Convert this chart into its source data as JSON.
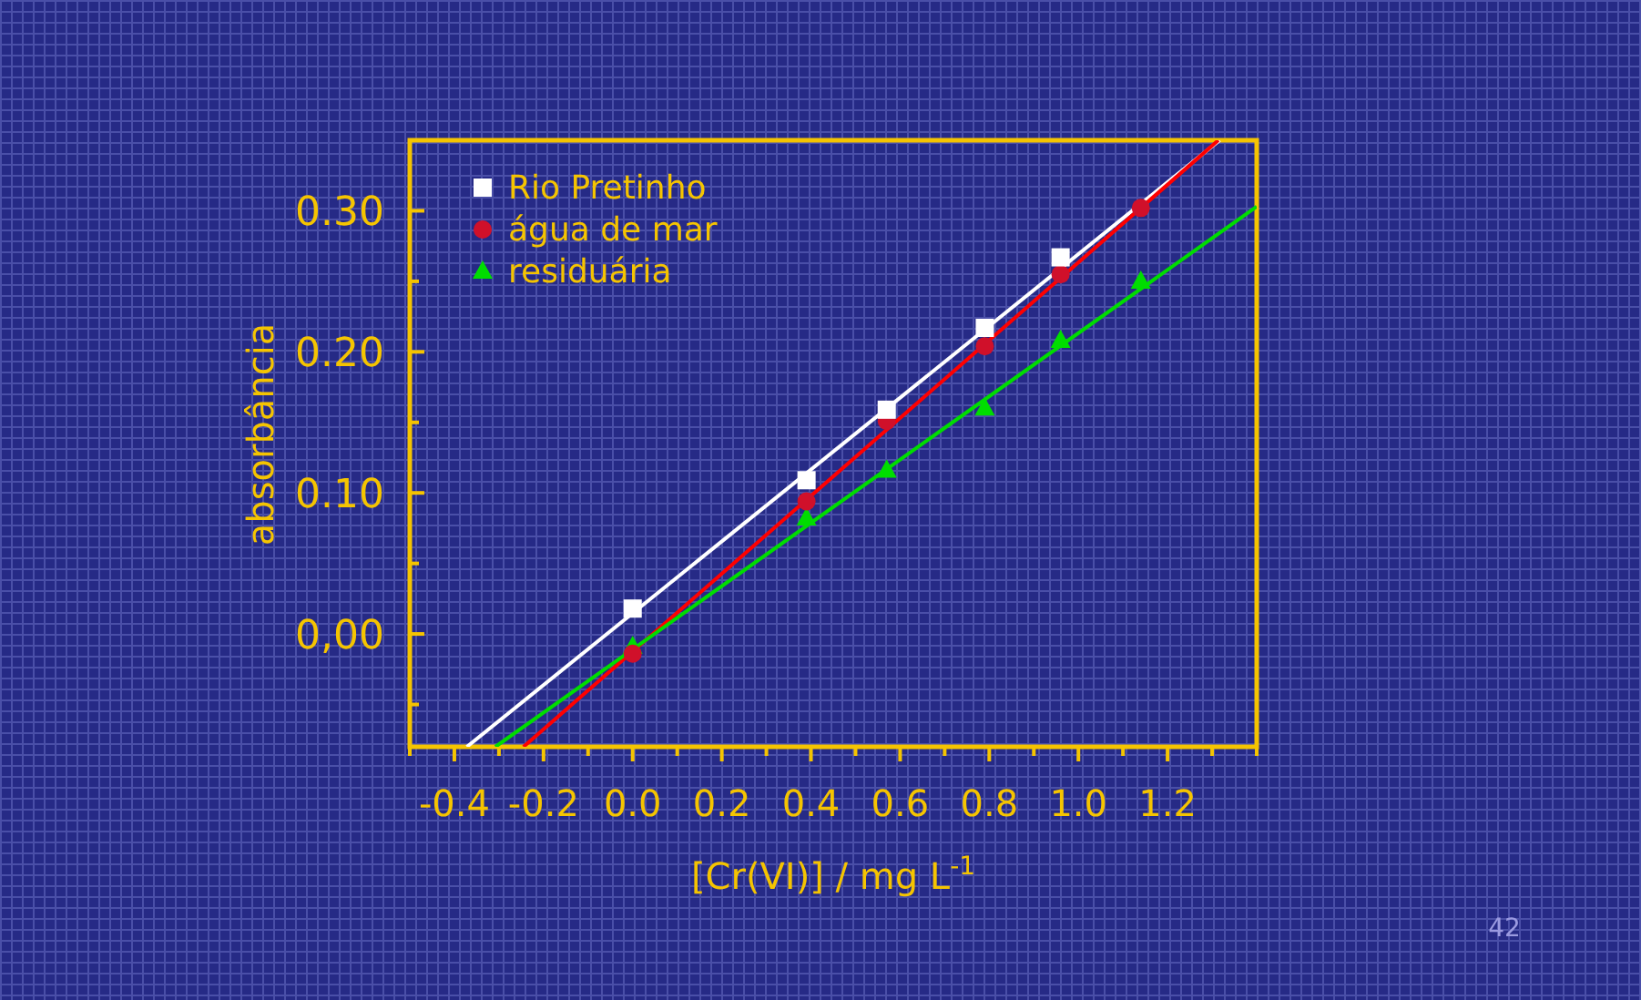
{
  "chart_data": {
    "type": "scatter",
    "xlabel": "[Cr(VI)] / mg L$^{-1}$",
    "ylabel": "absorbância",
    "xlim": [
      -0.5,
      1.4
    ],
    "ylim": [
      -0.08,
      0.35
    ],
    "xticks": [
      {
        "value": -0.5,
        "label": null
      },
      -0.4,
      {
        "value": -0.3,
        "label": null
      },
      -0.2,
      {
        "value": -0.1,
        "label": null
      },
      {
        "value": 0,
        "label": "0.0"
      },
      {
        "value": 0.1,
        "label": null
      },
      0.2,
      {
        "value": 0.3,
        "label": null
      },
      0.4,
      {
        "value": 0.5,
        "label": null
      },
      0.6,
      {
        "value": 0.7,
        "label": null
      },
      0.8,
      {
        "value": 0.9,
        "label": null
      },
      {
        "value": 1,
        "label": "1.0"
      },
      {
        "value": 1.1,
        "label": null
      },
      1.2,
      {
        "value": 1.3,
        "label": null
      },
      {
        "value": 1.4,
        "label": null
      }
    ],
    "yticks": [
      {
        "value": -0.05,
        "label": null
      },
      {
        "value": 0,
        "label": "0,00"
      },
      {
        "value": 0.05,
        "label": null
      },
      {
        "value": 0.1,
        "label": "0.10"
      },
      {
        "value": 0.15,
        "label": null
      },
      {
        "value": 0.2,
        "label": "0.20"
      },
      {
        "value": 0.25,
        "label": null
      },
      {
        "value": 0.3,
        "label": "0.30"
      }
    ],
    "grid": false,
    "legend": "top left",
    "series": [
      {
        "name": "Rio Pretinho",
        "marker": "square",
        "color": "#ffffff",
        "x": [
          0,
          0.39,
          0.57,
          0.79,
          0.96
        ],
        "values": [
          0.018,
          0.109,
          0.159,
          0.217,
          0.267
        ]
      },
      {
        "name": "água de mar",
        "marker": "circle",
        "color": "#d0102a",
        "x": [
          0,
          0.39,
          0.57,
          0.79,
          0.96,
          1.14
        ],
        "values": [
          -0.014,
          0.094,
          0.151,
          0.204,
          0.255,
          0.302
        ]
      },
      {
        "name": "residuária",
        "marker": "triangle",
        "color": "#00dd00",
        "x": [
          0,
          0.39,
          0.57,
          0.79,
          0.96,
          1.14
        ],
        "values": [
          -0.009,
          0.082,
          0.116,
          0.16,
          0.208,
          0.25
        ]
      },
      {
        "type": "line",
        "color": "#ffffff",
        "x": [
          -0.372,
          1.317
        ],
        "values": [
          -0.08,
          0.35
        ]
      },
      {
        "type": "line",
        "color": "#ff0000",
        "x": [
          -0.245,
          1.314
        ],
        "values": [
          -0.08,
          0.35
        ]
      },
      {
        "type": "line",
        "color": "#00dd00",
        "x": [
          -0.308,
          1.4
        ],
        "values": [
          -0.08,
          0.303
        ]
      }
    ],
    "annotations": [
      "42"
    ]
  }
}
